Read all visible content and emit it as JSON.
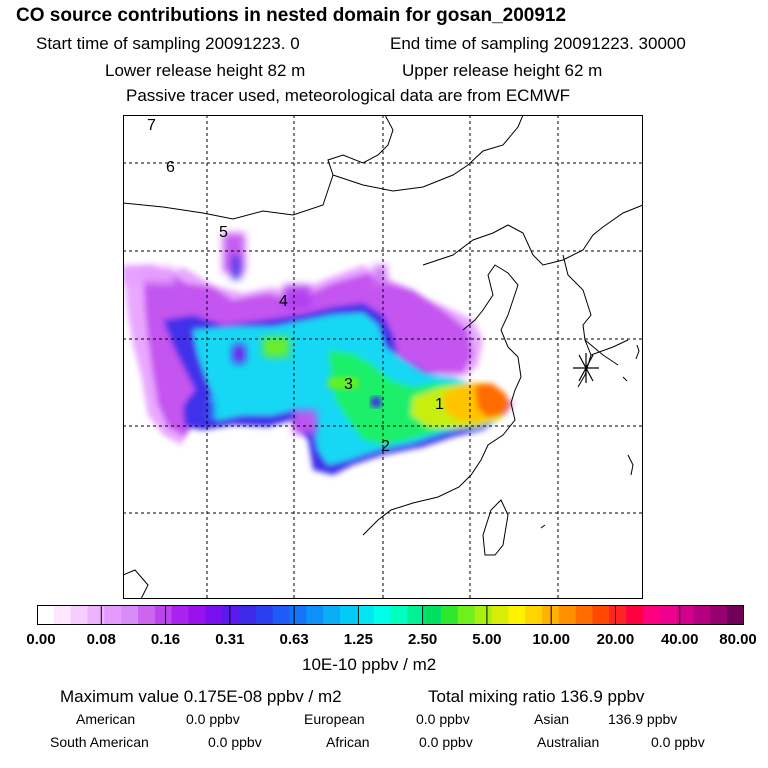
{
  "header": {
    "title": "CO  source contributions in nested domain for gosan_200912",
    "start_time": "Start time of sampling 20091223.     0",
    "end_time": "End time of sampling 20091223. 30000",
    "lower_height": "Lower release height   82 m",
    "upper_height": "Upper release height   62 m",
    "tracer_note": "Passive tracer used, meteorological data are from ECMWF"
  },
  "map": {
    "trajectory_labels": [
      "7",
      "6",
      "5",
      "4",
      "3",
      "1",
      "2"
    ],
    "receptor_marker": "asterisk"
  },
  "colorbar": {
    "tick_labels": [
      "0.00",
      "0.08",
      "0.16",
      "0.31",
      "0.63",
      "1.25",
      "2.50",
      "5.00",
      "10.00",
      "20.00",
      "40.00",
      "80.00"
    ],
    "unit": "10E-10 ppbv / m2",
    "colors": [
      "#ffffff",
      "#ffe6ff",
      "#f7ccff",
      "#eeb3ff",
      "#e699ff",
      "#d98cf7",
      "#cc66ee",
      "#bb44ee",
      "#aa22ee",
      "#9911ee",
      "#7a0eee",
      "#5a1aee",
      "#3d2ae8",
      "#2b3ff0",
      "#1e5af5",
      "#1573f7",
      "#0d90f8",
      "#0aaef7",
      "#00ccf7",
      "#00e6f2",
      "#00ffe8",
      "#00ffbf",
      "#00f294",
      "#00e060",
      "#2ee82e",
      "#6ef01c",
      "#a8f010",
      "#d8ec08",
      "#fff200",
      "#ffd400",
      "#ffb300",
      "#ff9000",
      "#ff6c00",
      "#ff4800",
      "#ff2424",
      "#ff0040",
      "#ff0080",
      "#f00090",
      "#d2008c",
      "#b40080",
      "#960070",
      "#700058"
    ]
  },
  "summary": {
    "max_value": "Maximum value  0.175E-08 ppbv / m2",
    "total_mixing": "Total mixing ratio       136.9 ppbv",
    "american": "American",
    "american_val": "0.0 ppbv",
    "european": "European",
    "european_val": "0.0 ppbv",
    "asian": "Asian",
    "asian_val": "136.9 ppbv",
    "south_american": "South American",
    "south_american_val": "0.0 ppbv",
    "african": "African",
    "african_val": "0.0 ppbv",
    "australian": "Australian",
    "australian_val": "0.0 ppbv"
  }
}
